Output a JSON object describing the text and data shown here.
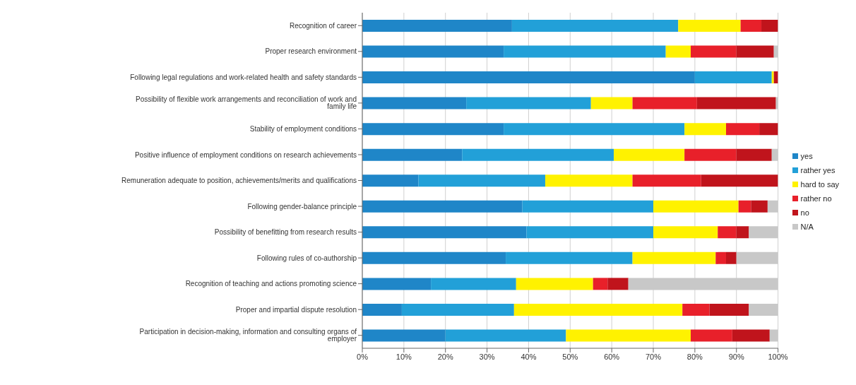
{
  "chart_data": {
    "type": "bar",
    "orientation": "horizontal",
    "stacked": true,
    "categories": [
      "Recognition of career",
      "Proper research environment",
      "Following legal regulations and work-related health and safety standards",
      "Possibility of flexible work arrangements and reconciliation of work and family life",
      "Stability of employment conditions",
      "Positive influence of employment conditions on research achievements",
      "Remuneration adequate to position, achievements/merits and qualifications",
      "Following gender-balance principle",
      "Possibility of benefitting from research results",
      "Following rules of co-authorship",
      "Recognition of teaching and actions promoting science",
      "Proper and impartial dispute resolution",
      "Participation in decision-making, information and consulting organs of employer"
    ],
    "series": [
      {
        "name": "yes",
        "color": "#1f86c8",
        "values": [
          36,
          34,
          80,
          25,
          34,
          24,
          13.5,
          38.5,
          39.5,
          34.5,
          16.5,
          9.5,
          20
        ]
      },
      {
        "name": "rather yes",
        "color": "#22a0d8",
        "values": [
          40,
          39,
          18.5,
          30,
          43.5,
          36.5,
          30.5,
          31.5,
          30.5,
          30.5,
          20.5,
          27,
          29
        ]
      },
      {
        "name": "hard to say",
        "color": "#fff200",
        "values": [
          15,
          6,
          0.5,
          10,
          10,
          17,
          21,
          20.5,
          15.5,
          20,
          18.5,
          40.5,
          30
        ]
      },
      {
        "name": "rather no",
        "color": "#e8202a",
        "values": [
          5,
          11,
          0,
          15.5,
          8,
          12.5,
          16.5,
          3,
          4.5,
          2.5,
          3.5,
          6.5,
          10
        ]
      },
      {
        "name": "no",
        "color": "#c0141c",
        "values": [
          4,
          9,
          1,
          19,
          4.5,
          8.5,
          18.5,
          4,
          3,
          2.5,
          5,
          9.5,
          9
        ]
      },
      {
        "name": "N/A",
        "color": "#c8c8c8",
        "values": [
          0,
          1,
          0,
          0.5,
          0,
          1.5,
          0,
          2.5,
          7,
          10,
          36,
          7,
          2
        ]
      }
    ],
    "xlim": [
      0,
      100
    ],
    "xticks": [
      {
        "value": 0,
        "label": "0%"
      },
      {
        "value": 10,
        "label": "10%"
      },
      {
        "value": 20,
        "label": "20%"
      },
      {
        "value": 30,
        "label": "30%"
      },
      {
        "value": 40,
        "label": "40%"
      },
      {
        "value": 50,
        "label": "50%"
      },
      {
        "value": 60,
        "label": "60%"
      },
      {
        "value": 70,
        "label": "70%"
      },
      {
        "value": 80,
        "label": "80%"
      },
      {
        "value": 90,
        "label": "90%"
      },
      {
        "value": 100,
        "label": "100%"
      }
    ],
    "grid": "x",
    "legend": "right"
  }
}
